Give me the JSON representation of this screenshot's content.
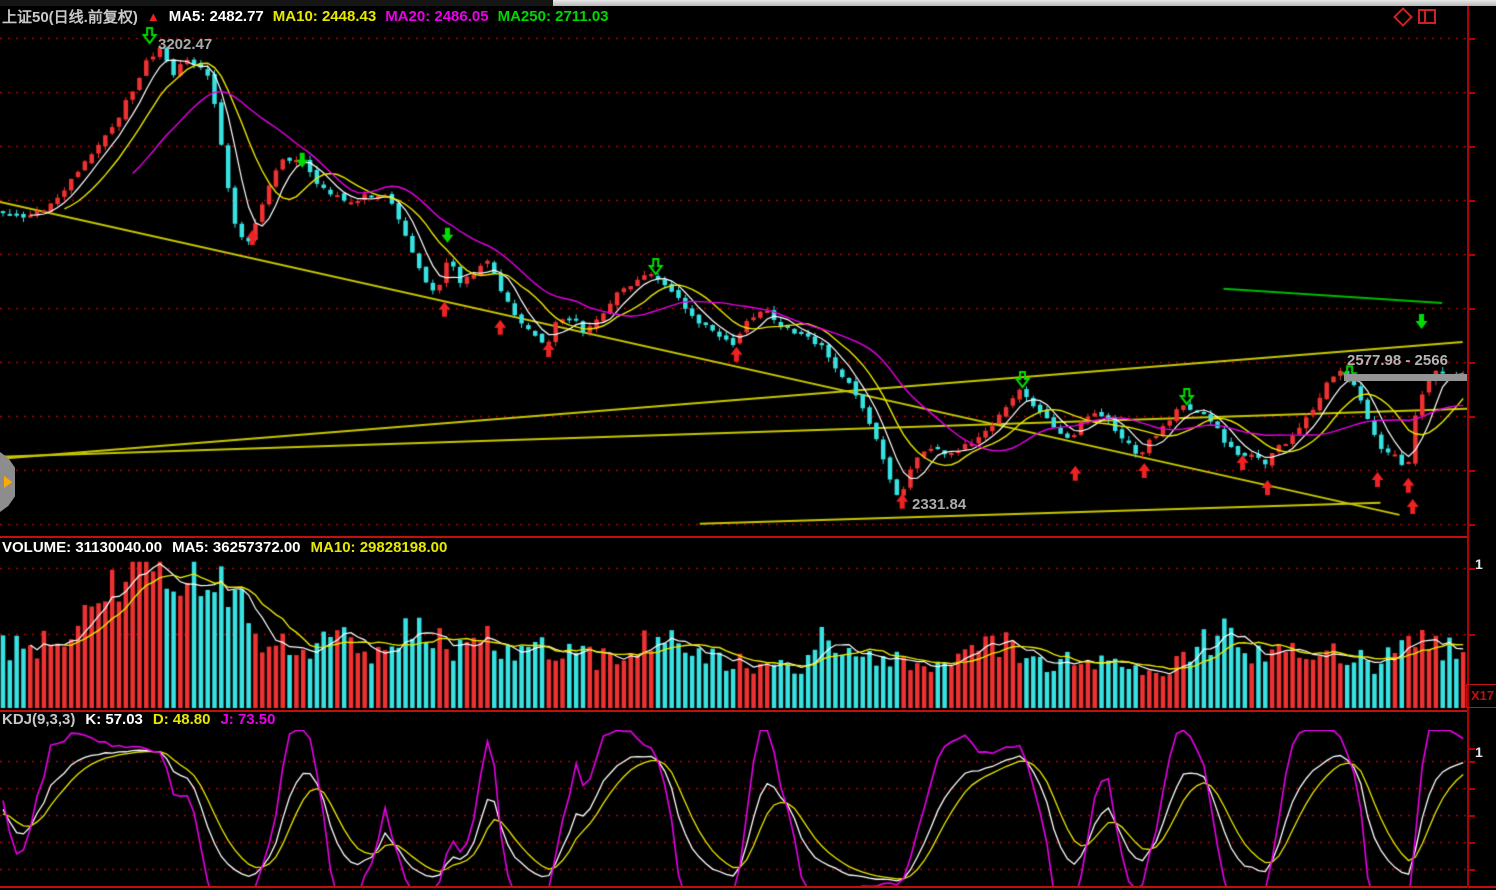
{
  "colors": {
    "up": "#ee3232",
    "down": "#38e2e2",
    "ma5": "#ffffff",
    "ma10": "#e8e800",
    "ma20": "#e800e8",
    "ma250": "#00cc00",
    "grid": "#b40000",
    "axis": "#b40000",
    "separator": "#c01010",
    "trendline": "#c8c800",
    "label_gray": "#ababab"
  },
  "header": {
    "title": "上证50(日线.前复权)",
    "arrow_icon": "▲",
    "ma5": "MA5: 2482.77",
    "ma10": "MA10: 2448.43",
    "ma20": "MA20: 2486.05",
    "ma250": "MA250: 2711.03"
  },
  "main_chart": {
    "peak_label": "3202.47",
    "low_label": "2331.84",
    "current_range_label": "2577.98 - 2566"
  },
  "volume_panel": {
    "label": "VOLUME: 31130040.00",
    "ma5": "MA5: 36257372.00",
    "ma10": "MA10: 29828198.00",
    "scale_label": "X17",
    "axis_clipped": "1"
  },
  "kdj_panel": {
    "label": "KDJ(9,3,3)",
    "k": "K: 57.03",
    "d": "D: 48.80",
    "j": "J: 73.50",
    "axis_clipped": "1"
  },
  "chart_data": [
    {
      "type": "candlestick",
      "title": "上证50 daily, forward-adjusted",
      "n_bars": 215,
      "ylim": [
        2273,
        3242
      ],
      "annotations": {
        "peak": 3202.47,
        "low": 2331.84,
        "last_range": "2577.98 - 2566"
      },
      "ma_periods": [
        5,
        10,
        20,
        250
      ],
      "ma_values_current": {
        "ma5": 2482.77,
        "ma10": 2448.43,
        "ma20": 2486.05,
        "ma250": 2711.03
      },
      "close_path": [
        [
          0.002,
          2881
        ],
        [
          0.017,
          2875
        ],
        [
          0.031,
          2900
        ],
        [
          0.044,
          2938
        ],
        [
          0.058,
          2985
        ],
        [
          0.072,
          3032
        ],
        [
          0.085,
          3098
        ],
        [
          0.099,
          3174
        ],
        [
          0.108,
          3197
        ],
        [
          0.116,
          3146
        ],
        [
          0.124,
          3174
        ],
        [
          0.134,
          3159
        ],
        [
          0.142,
          3136
        ],
        [
          0.151,
          2985
        ],
        [
          0.158,
          2862
        ],
        [
          0.167,
          2824
        ],
        [
          0.176,
          2881
        ],
        [
          0.184,
          2956
        ],
        [
          0.192,
          2985
        ],
        [
          0.205,
          2981
        ],
        [
          0.215,
          2938
        ],
        [
          0.225,
          2919
        ],
        [
          0.235,
          2909
        ],
        [
          0.245,
          2913
        ],
        [
          0.256,
          2922
        ],
        [
          0.266,
          2909
        ],
        [
          0.276,
          2843
        ],
        [
          0.286,
          2767
        ],
        [
          0.297,
          2729
        ],
        [
          0.305,
          2799
        ],
        [
          0.314,
          2748
        ],
        [
          0.324,
          2777
        ],
        [
          0.333,
          2799
        ],
        [
          0.341,
          2739
        ],
        [
          0.351,
          2691
        ],
        [
          0.361,
          2663
        ],
        [
          0.372,
          2635
        ],
        [
          0.38,
          2682
        ],
        [
          0.389,
          2686
        ],
        [
          0.397,
          2663
        ],
        [
          0.406,
          2678
        ],
        [
          0.414,
          2710
        ],
        [
          0.424,
          2739
        ],
        [
          0.435,
          2761
        ],
        [
          0.447,
          2767
        ],
        [
          0.455,
          2748
        ],
        [
          0.465,
          2716
        ],
        [
          0.474,
          2686
        ],
        [
          0.484,
          2663
        ],
        [
          0.492,
          2644
        ],
        [
          0.502,
          2635
        ],
        [
          0.511,
          2686
        ],
        [
          0.52,
          2705
        ],
        [
          0.53,
          2678
        ],
        [
          0.54,
          2663
        ],
        [
          0.549,
          2653
        ],
        [
          0.559,
          2635
        ],
        [
          0.569,
          2597
        ],
        [
          0.579,
          2559
        ],
        [
          0.59,
          2512
        ],
        [
          0.6,
          2445
        ],
        [
          0.609,
          2360
        ],
        [
          0.615,
          2345
        ],
        [
          0.624,
          2417
        ],
        [
          0.633,
          2445
        ],
        [
          0.641,
          2432
        ],
        [
          0.649,
          2426
        ],
        [
          0.658,
          2440
        ],
        [
          0.667,
          2455
        ],
        [
          0.676,
          2483
        ],
        [
          0.685,
          2508
        ],
        [
          0.694,
          2549
        ],
        [
          0.704,
          2530
        ],
        [
          0.712,
          2502
        ],
        [
          0.721,
          2474
        ],
        [
          0.731,
          2455
        ],
        [
          0.74,
          2502
        ],
        [
          0.749,
          2508
        ],
        [
          0.758,
          2493
        ],
        [
          0.767,
          2455
        ],
        [
          0.777,
          2426
        ],
        [
          0.787,
          2455
        ],
        [
          0.798,
          2493
        ],
        [
          0.808,
          2521
        ],
        [
          0.818,
          2508
        ],
        [
          0.828,
          2489
        ],
        [
          0.839,
          2440
        ],
        [
          0.847,
          2426
        ],
        [
          0.856,
          2421
        ],
        [
          0.864,
          2413
        ],
        [
          0.874,
          2440
        ],
        [
          0.883,
          2459
        ],
        [
          0.892,
          2493
        ],
        [
          0.901,
          2534
        ],
        [
          0.91,
          2572
        ],
        [
          0.917,
          2591
        ],
        [
          0.926,
          2549
        ],
        [
          0.935,
          2493
        ],
        [
          0.944,
          2440
        ],
        [
          0.953,
          2426
        ],
        [
          0.958,
          2407
        ],
        [
          0.963,
          2417
        ],
        [
          0.968,
          2512
        ],
        [
          0.974,
          2559
        ],
        [
          0.979,
          2578
        ],
        [
          0.985,
          2584
        ],
        [
          0.99,
          2572
        ],
        [
          0.995,
          2578
        ]
      ],
      "trendlines": [
        {
          "x1": 0.0,
          "p1": 2905,
          "x2": 0.954,
          "p2": 2313,
          "color": "#c8c800"
        },
        {
          "x1": 0.0,
          "p1": 2423,
          "x2": 1.0,
          "p2": 2514,
          "color": "#c8c800"
        },
        {
          "x1": 0.477,
          "p1": 2296,
          "x2": 0.941,
          "p2": 2336,
          "color": "#c8c800"
        },
        {
          "x1": 0.0,
          "p1": 2419,
          "x2": 0.997,
          "p2": 2640,
          "color": "#c8c800"
        },
        {
          "x1": 0.834,
          "p1": 2741,
          "x2": 0.983,
          "p2": 2714,
          "color": "#00bb00"
        }
      ],
      "markers": {
        "buy": [
          [
            0.172,
            2837
          ],
          [
            0.303,
            2701
          ],
          [
            0.341,
            2667
          ],
          [
            0.374,
            2625
          ],
          [
            0.502,
            2616
          ],
          [
            0.615,
            2338
          ],
          [
            0.733,
            2391
          ],
          [
            0.78,
            2396
          ],
          [
            0.847,
            2411
          ],
          [
            0.864,
            2364
          ],
          [
            0.939,
            2379
          ],
          [
            0.96,
            2368
          ],
          [
            0.963,
            2328
          ]
        ],
        "sell": [
          [
            0.206,
            2985
          ],
          [
            0.305,
            2843
          ],
          [
            0.969,
            2680
          ]
        ],
        "pivot": [
          [
            0.102,
            3221
          ],
          [
            0.447,
            2784
          ],
          [
            0.697,
            2570
          ],
          [
            0.809,
            2538
          ],
          [
            0.92,
            2581
          ]
        ]
      }
    },
    {
      "type": "bar",
      "title": "Volume",
      "current": 31130040.0,
      "ma5": 36257372.0,
      "ma10": 29828198.0,
      "profile": [
        [
          0.0,
          0.42
        ],
        [
          0.027,
          0.45
        ],
        [
          0.045,
          0.52
        ],
        [
          0.07,
          0.82
        ],
        [
          0.092,
          1.0
        ],
        [
          0.11,
          0.9
        ],
        [
          0.143,
          0.96
        ],
        [
          0.157,
          0.75
        ],
        [
          0.177,
          0.52
        ],
        [
          0.205,
          0.45
        ],
        [
          0.232,
          0.48
        ],
        [
          0.26,
          0.38
        ],
        [
          0.278,
          0.62
        ],
        [
          0.307,
          0.42
        ],
        [
          0.334,
          0.5
        ],
        [
          0.354,
          0.38
        ],
        [
          0.382,
          0.42
        ],
        [
          0.409,
          0.35
        ],
        [
          0.436,
          0.44
        ],
        [
          0.464,
          0.46
        ],
        [
          0.491,
          0.31
        ],
        [
          0.518,
          0.31
        ],
        [
          0.545,
          0.28
        ],
        [
          0.559,
          0.6
        ],
        [
          0.573,
          0.34
        ],
        [
          0.6,
          0.37
        ],
        [
          0.627,
          0.34
        ],
        [
          0.655,
          0.31
        ],
        [
          0.682,
          0.48
        ],
        [
          0.709,
          0.34
        ],
        [
          0.75,
          0.31
        ],
        [
          0.777,
          0.28
        ],
        [
          0.805,
          0.31
        ],
        [
          0.838,
          0.58
        ],
        [
          0.859,
          0.37
        ],
        [
          0.886,
          0.41
        ],
        [
          0.913,
          0.37
        ],
        [
          0.941,
          0.31
        ],
        [
          0.968,
          0.46
        ],
        [
          0.99,
          0.41
        ]
      ]
    },
    {
      "type": "line",
      "title": "KDJ",
      "params": [
        9,
        3,
        3
      ],
      "k": 57.03,
      "d": 48.8,
      "j": 73.5,
      "ylim": [
        0,
        100
      ],
      "line_colors": {
        "k": "#ffffff",
        "d": "#e8e800",
        "j": "#e800e8"
      }
    }
  ]
}
